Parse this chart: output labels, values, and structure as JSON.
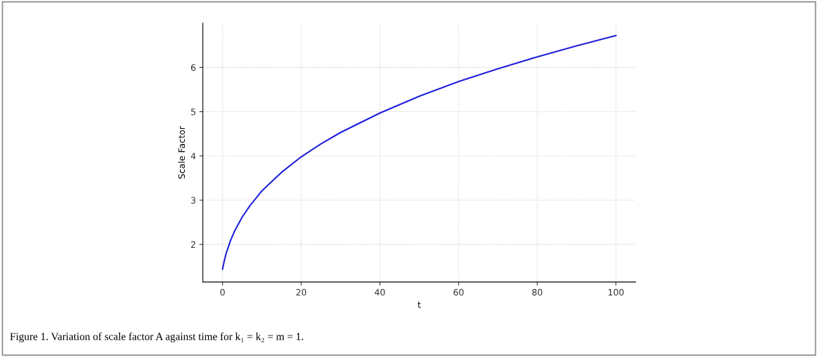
{
  "chart_data": {
    "type": "line",
    "xlabel": "t",
    "ylabel": "Scale Factor",
    "x": [
      0,
      0.5,
      1,
      2,
      3,
      5,
      7,
      10,
      15,
      20,
      25,
      30,
      40,
      50,
      60,
      70,
      80,
      90,
      100
    ],
    "series": [
      {
        "color": "#1f1fdb",
        "values": [
          1.44,
          1.65,
          1.82,
          2.08,
          2.29,
          2.62,
          2.88,
          3.21,
          3.63,
          3.98,
          4.27,
          4.53,
          4.97,
          5.35,
          5.68,
          5.97,
          6.24,
          6.49,
          6.72
        ]
      }
    ],
    "xlim": [
      -5,
      105
    ],
    "xticks": [
      0,
      20,
      40,
      60,
      80,
      100
    ],
    "ylim": [
      1.15,
      7.0
    ],
    "yticks": [
      2,
      3,
      4,
      5,
      6
    ],
    "grid": true,
    "line_style": "solid",
    "marker": "none",
    "annotations": [
      "Figure 1. Variation of scale factor A against time for k₁ = k₂ = m = 1."
    ]
  }
}
